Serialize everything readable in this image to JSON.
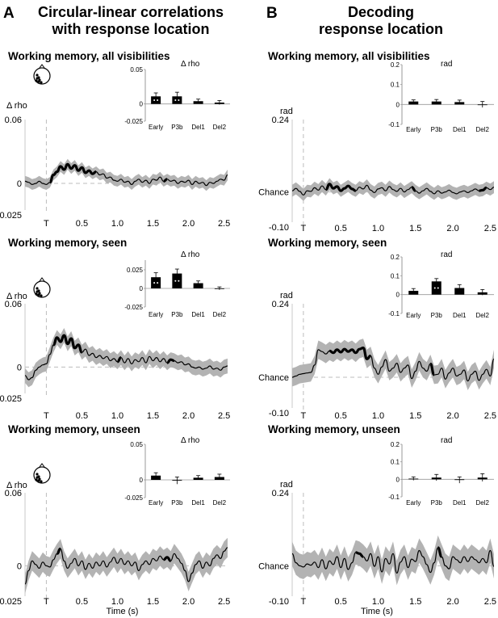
{
  "figure": {
    "colors": {
      "line": "#000000",
      "band": "#b3b3b3",
      "dashed": "#bdbdbd",
      "axis": "#c8c8c8",
      "bar": "#000000"
    }
  },
  "columns": [
    {
      "letter": "A",
      "title_lines": [
        "Circular-linear correlations",
        "with response location"
      ]
    },
    {
      "letter": "B",
      "title_lines": [
        "Decoding",
        "response location"
      ]
    }
  ],
  "chart_data": [
    {
      "panel": "A1",
      "type": "line",
      "title": "Working memory, all visibilities",
      "ylabel": "Δ rho",
      "ytick_labels": [
        "0.06",
        "0",
        "-0.025"
      ],
      "ylim": [
        -0.025,
        0.06
      ],
      "xlabel": "",
      "xtick_labels": [
        "T",
        "0.5",
        "1.0",
        "1.5",
        "2.0",
        "2.5"
      ],
      "xticks": [
        0,
        0.5,
        1.0,
        1.5,
        2.0,
        2.5
      ],
      "xlim": [
        -0.3,
        2.55
      ],
      "band_width": 0.005,
      "has_head": true,
      "x": [
        -0.3,
        -0.25,
        -0.2,
        -0.15,
        -0.1,
        -0.05,
        0,
        0.05,
        0.1,
        0.15,
        0.2,
        0.25,
        0.3,
        0.35,
        0.4,
        0.45,
        0.5,
        0.55,
        0.6,
        0.65,
        0.7,
        0.75,
        0.8,
        0.85,
        0.9,
        0.95,
        1.0,
        1.05,
        1.1,
        1.15,
        1.2,
        1.25,
        1.3,
        1.35,
        1.4,
        1.45,
        1.5,
        1.55,
        1.6,
        1.65,
        1.7,
        1.75,
        1.8,
        1.85,
        1.9,
        1.95,
        2.0,
        2.05,
        2.1,
        2.15,
        2.2,
        2.25,
        2.3,
        2.35,
        2.4,
        2.45,
        2.5,
        2.55
      ],
      "y": [
        0.002,
        0.001,
        -0.001,
        0.0,
        0.002,
        0.0,
        -0.001,
        0.001,
        0.008,
        0.011,
        0.016,
        0.013,
        0.018,
        0.014,
        0.017,
        0.012,
        0.015,
        0.01,
        0.012,
        0.009,
        0.011,
        0.008,
        0.009,
        0.005,
        0.006,
        0.003,
        0.002,
        0.004,
        0.001,
        0.002,
        -0.001,
        0.002,
        0.004,
        0.001,
        0.003,
        0.0,
        0.004,
        0.003,
        0.006,
        0.002,
        0.004,
        0.002,
        0.003,
        0.0,
        0.002,
        0.001,
        0.003,
        -0.001,
        0.002,
        0.0,
        0.001,
        -0.002,
        0.001,
        0.0,
        0.002,
        0.004,
        0.003,
        0.008
      ],
      "significant": [
        [
          0.05,
          0.7
        ],
        [
          1.65,
          1.7
        ]
      ],
      "inset": {
        "title": "Δ rho",
        "ytick_labels": [
          "0.05",
          "0",
          "-0.025"
        ],
        "ylim": [
          -0.025,
          0.05
        ],
        "categories": [
          "Early",
          "P3b",
          "Del1",
          "Del2"
        ],
        "values": [
          0.011,
          0.011,
          0.004,
          0.002
        ],
        "errors": [
          0.005,
          0.006,
          0.003,
          0.003
        ],
        "markers": [
          true,
          true,
          false,
          false
        ]
      }
    },
    {
      "panel": "A2",
      "type": "line",
      "title": "Working memory, seen",
      "ylabel": "Δ rho",
      "ytick_labels": [
        "0.06",
        "0",
        "-0.025"
      ],
      "ylim": [
        -0.025,
        0.06
      ],
      "xlabel": "",
      "xtick_labels": [
        "T",
        "0.5",
        "1.0",
        "1.5",
        "2.0",
        "2.5"
      ],
      "xticks": [
        0,
        0.5,
        1.0,
        1.5,
        2.0,
        2.5
      ],
      "xlim": [
        -0.3,
        2.55
      ],
      "band_width": 0.007,
      "has_head": true,
      "x": [
        -0.3,
        -0.25,
        -0.2,
        -0.15,
        -0.1,
        -0.05,
        0,
        0.05,
        0.1,
        0.15,
        0.2,
        0.25,
        0.3,
        0.35,
        0.4,
        0.45,
        0.5,
        0.55,
        0.6,
        0.65,
        0.7,
        0.75,
        0.8,
        0.85,
        0.9,
        0.95,
        1.0,
        1.05,
        1.1,
        1.15,
        1.2,
        1.25,
        1.3,
        1.35,
        1.4,
        1.45,
        1.5,
        1.55,
        1.6,
        1.65,
        1.7,
        1.75,
        1.8,
        1.85,
        1.9,
        1.95,
        2.0,
        2.05,
        2.1,
        2.15,
        2.2,
        2.25,
        2.3,
        2.35,
        2.4,
        2.45,
        2.5,
        2.55
      ],
      "y": [
        -0.008,
        -0.012,
        -0.01,
        -0.003,
        0.0,
        0.002,
        0.003,
        0.012,
        0.021,
        0.028,
        0.024,
        0.03,
        0.022,
        0.027,
        0.018,
        0.021,
        0.014,
        0.017,
        0.011,
        0.013,
        0.009,
        0.011,
        0.008,
        0.01,
        0.006,
        0.008,
        0.005,
        0.009,
        0.004,
        0.008,
        0.003,
        0.007,
        0.005,
        0.009,
        0.004,
        0.01,
        0.006,
        0.009,
        0.005,
        0.008,
        0.004,
        0.007,
        0.006,
        0.004,
        0.005,
        0.002,
        0.003,
        0.0,
        -0.001,
        0.0,
        -0.002,
        -0.001,
        0.001,
        -0.002,
        -0.001,
        -0.003,
        0.0,
        0.001
      ],
      "significant": [
        [
          0.1,
          0.5
        ],
        [
          1.0,
          1.05
        ],
        [
          1.7,
          1.8
        ]
      ],
      "inset": {
        "title": "Δ rho",
        "ytick_labels": [
          "0.025",
          "0",
          "-0.025"
        ],
        "ylim": [
          -0.025,
          0.038
        ],
        "categories": [
          "Early",
          "P3b",
          "Del1",
          "Del2"
        ],
        "values": [
          0.015,
          0.02,
          0.007,
          0.0
        ],
        "errors": [
          0.006,
          0.006,
          0.003,
          0.002
        ],
        "markers": [
          true,
          true,
          false,
          false
        ]
      }
    },
    {
      "panel": "A3",
      "type": "line",
      "title": "Working memory, unseen",
      "ylabel": "Δ rho",
      "ytick_labels": [
        "0.06",
        "0",
        "-0.025"
      ],
      "ylim": [
        -0.025,
        0.06
      ],
      "xlabel": "Time (s)",
      "xtick_labels": [
        "T",
        "0.5",
        "1.0",
        "1.5",
        "2.0",
        "2.5"
      ],
      "xticks": [
        0,
        0.5,
        1.0,
        1.5,
        2.0,
        2.5
      ],
      "xlim": [
        -0.3,
        2.55
      ],
      "band_width": 0.008,
      "has_head": true,
      "x": [
        -0.3,
        -0.25,
        -0.2,
        -0.15,
        -0.1,
        -0.05,
        0,
        0.05,
        0.1,
        0.15,
        0.2,
        0.25,
        0.3,
        0.35,
        0.4,
        0.45,
        0.5,
        0.55,
        0.6,
        0.65,
        0.7,
        0.75,
        0.8,
        0.85,
        0.9,
        0.95,
        1.0,
        1.05,
        1.1,
        1.15,
        1.2,
        1.25,
        1.3,
        1.35,
        1.4,
        1.45,
        1.5,
        1.55,
        1.6,
        1.65,
        1.7,
        1.75,
        1.8,
        1.85,
        1.9,
        1.95,
        2.0,
        2.05,
        2.1,
        2.15,
        2.2,
        2.25,
        2.3,
        2.35,
        2.4,
        2.45,
        2.5,
        2.55
      ],
      "y": [
        -0.015,
        -0.004,
        0.004,
        0.001,
        -0.002,
        0.003,
        0.0,
        -0.001,
        0.005,
        0.01,
        0.014,
        0.004,
        -0.002,
        0.002,
        0.006,
        0.0,
        0.004,
        -0.003,
        0.002,
        -0.002,
        0.003,
        0.0,
        0.004,
        -0.001,
        0.003,
        0.007,
        0.002,
        0.006,
        0.001,
        0.004,
        0.0,
        0.003,
        -0.004,
        0.001,
        0.004,
        0.001,
        0.006,
        0.004,
        0.008,
        0.005,
        0.007,
        0.004,
        0.01,
        0.006,
        0.002,
        -0.004,
        -0.013,
        -0.006,
        0.001,
        0.004,
        -0.002,
        0.003,
        0.0,
        0.006,
        0.009,
        0.006,
        0.012,
        0.015
      ],
      "significant": [
        [
          0.15,
          0.2
        ],
        [
          1.65,
          1.75
        ]
      ],
      "inset": {
        "title": "Δ rho",
        "ytick_labels": [
          "0.05",
          "0",
          "-0.025"
        ],
        "ylim": [
          -0.025,
          0.05
        ],
        "categories": [
          "Early",
          "P3b",
          "Del1",
          "Del2"
        ],
        "values": [
          0.006,
          -0.001,
          0.003,
          0.004
        ],
        "errors": [
          0.004,
          0.005,
          0.003,
          0.004
        ],
        "markers": [
          false,
          false,
          false,
          false
        ]
      }
    },
    {
      "panel": "B1",
      "type": "line",
      "title": "Working memory, all visibilities",
      "ylabel": "rad",
      "ytick_labels": [
        "0.24",
        "Chance",
        "-0.10"
      ],
      "ylim": [
        -0.1,
        0.24
      ],
      "xlabel": "",
      "xtick_labels": [
        "T",
        "0.5",
        "1.0",
        "1.5",
        "2.0",
        "2.5"
      ],
      "xticks": [
        0,
        0.5,
        1.0,
        1.5,
        2.0,
        2.5
      ],
      "xlim": [
        -0.15,
        2.55
      ],
      "band_width": 0.02,
      "has_head": false,
      "x": [
        -0.15,
        -0.1,
        -0.05,
        0,
        0.05,
        0.1,
        0.15,
        0.2,
        0.25,
        0.3,
        0.35,
        0.4,
        0.45,
        0.5,
        0.55,
        0.6,
        0.65,
        0.7,
        0.75,
        0.8,
        0.85,
        0.9,
        0.95,
        1.0,
        1.05,
        1.1,
        1.15,
        1.2,
        1.25,
        1.3,
        1.35,
        1.4,
        1.45,
        1.5,
        1.55,
        1.6,
        1.65,
        1.7,
        1.75,
        1.8,
        1.85,
        1.9,
        1.95,
        2.0,
        2.05,
        2.1,
        2.15,
        2.2,
        2.25,
        2.3,
        2.35,
        2.4,
        2.45,
        2.5,
        2.55
      ],
      "y": [
        0.004,
        0.012,
        0.002,
        -0.01,
        0.004,
        0.002,
        0.014,
        0.006,
        0.02,
        0.008,
        0.026,
        0.012,
        0.018,
        0.004,
        0.012,
        0.02,
        0.01,
        0.004,
        0.016,
        0.01,
        0.022,
        0.006,
        -0.002,
        0.01,
        0.014,
        0.004,
        0.018,
        0.008,
        0.002,
        0.012,
        0.0,
        0.008,
        0.016,
        0.004,
        -0.004,
        0.004,
        0.012,
        0.002,
        -0.006,
        0.004,
        -0.004,
        0.0,
        0.006,
        -0.002,
        -0.006,
        0.0,
        0.004,
        -0.002,
        0.004,
        0.01,
        0.004,
        0.006,
        0.014,
        0.008,
        0.016
      ],
      "significant": [
        [
          0.3,
          0.7
        ],
        [
          1.45,
          1.5
        ],
        [
          2.35,
          2.45
        ]
      ],
      "inset": {
        "title": "rad",
        "ytick_labels": [
          "0.2",
          "0.1",
          "0",
          "-0.1"
        ],
        "ylim": [
          -0.1,
          0.2
        ],
        "categories": [
          "Early",
          "P3b",
          "Del1",
          "Del2"
        ],
        "values": [
          0.015,
          0.015,
          0.012,
          0.0
        ],
        "errors": [
          0.008,
          0.01,
          0.01,
          0.015
        ],
        "markers": [
          false,
          false,
          false,
          false
        ]
      }
    },
    {
      "panel": "B2",
      "type": "line",
      "title": "Working memory, seen",
      "ylabel": "rad",
      "ytick_labels": [
        "0.24",
        "Chance",
        "-0.10"
      ],
      "ylim": [
        -0.1,
        0.24
      ],
      "xlabel": "",
      "xtick_labels": [
        "T",
        "0.5",
        "1.0",
        "1.5",
        "2.0",
        "2.5"
      ],
      "xticks": [
        0,
        0.5,
        1.0,
        1.5,
        2.0,
        2.5
      ],
      "xlim": [
        -0.15,
        2.55
      ],
      "band_width": 0.03,
      "has_head": false,
      "x": [
        -0.15,
        -0.1,
        -0.05,
        0,
        0.05,
        0.1,
        0.15,
        0.2,
        0.25,
        0.3,
        0.35,
        0.4,
        0.45,
        0.5,
        0.55,
        0.6,
        0.65,
        0.7,
        0.75,
        0.8,
        0.85,
        0.9,
        0.95,
        1.0,
        1.05,
        1.1,
        1.15,
        1.2,
        1.25,
        1.3,
        1.35,
        1.4,
        1.45,
        1.5,
        1.55,
        1.6,
        1.65,
        1.7,
        1.75,
        1.8,
        1.85,
        1.9,
        1.95,
        2.0,
        2.05,
        2.1,
        2.15,
        2.2,
        2.25,
        2.3,
        2.35,
        2.4,
        2.45,
        2.5,
        2.55
      ],
      "y": [
        0.0,
        0.004,
        0.01,
        0.012,
        0.014,
        0.016,
        0.04,
        0.09,
        0.084,
        0.076,
        0.086,
        0.08,
        0.09,
        0.082,
        0.092,
        0.084,
        0.09,
        0.08,
        0.092,
        0.096,
        0.06,
        0.07,
        0.03,
        0.01,
        0.034,
        0.058,
        0.02,
        0.03,
        0.046,
        0.016,
        0.03,
        0.04,
        -0.004,
        0.02,
        0.052,
        0.03,
        0.02,
        0.044,
        0.008,
        0.01,
        0.03,
        -0.006,
        0.014,
        0.03,
        0.004,
        0.01,
        0.024,
        -0.012,
        0.01,
        0.02,
        -0.01,
        0.01,
        0.026,
        0.004,
        0.06
      ],
      "significant": [
        [
          0.35,
          0.9
        ],
        [
          1.7,
          1.75
        ]
      ],
      "inset": {
        "title": "rad",
        "ytick_labels": [
          "0.2",
          "0.1",
          "0",
          "-0.1"
        ],
        "ylim": [
          -0.1,
          0.2
        ],
        "categories": [
          "Early",
          "P3b",
          "Del1",
          "Del2"
        ],
        "values": [
          0.02,
          0.07,
          0.035,
          0.012
        ],
        "errors": [
          0.012,
          0.015,
          0.018,
          0.015
        ],
        "markers": [
          false,
          true,
          false,
          false
        ]
      }
    },
    {
      "panel": "B3",
      "type": "line",
      "title": "Working memory, unseen",
      "ylabel": "rad",
      "ytick_labels": [
        "0.24",
        "Chance",
        "-0.10"
      ],
      "ylim": [
        -0.1,
        0.24
      ],
      "xlabel": "Time (s)",
      "xtick_labels": [
        "T",
        "0.5",
        "1.0",
        "1.5",
        "2.0",
        "2.5"
      ],
      "xticks": [
        0,
        0.5,
        1.0,
        1.5,
        2.0,
        2.5
      ],
      "xlim": [
        -0.15,
        2.55
      ],
      "band_width": 0.04,
      "has_head": false,
      "x": [
        -0.15,
        -0.1,
        -0.05,
        0,
        0.05,
        0.1,
        0.15,
        0.2,
        0.25,
        0.3,
        0.35,
        0.4,
        0.45,
        0.5,
        0.55,
        0.6,
        0.65,
        0.7,
        0.75,
        0.8,
        0.85,
        0.9,
        0.95,
        1.0,
        1.05,
        1.1,
        1.15,
        1.2,
        1.25,
        1.3,
        1.35,
        1.4,
        1.45,
        1.5,
        1.55,
        1.6,
        1.65,
        1.7,
        1.75,
        1.8,
        1.85,
        1.9,
        1.95,
        2.0,
        2.05,
        2.1,
        2.15,
        2.2,
        2.25,
        2.3,
        2.35,
        2.4,
        2.45,
        2.5,
        2.55
      ],
      "y": [
        0.04,
        0.01,
        0.0,
        -0.004,
        0.006,
        0.002,
        0.012,
        -0.006,
        0.02,
        -0.01,
        0.016,
        0.004,
        0.03,
        -0.006,
        0.024,
        -0.012,
        0.01,
        0.044,
        0.04,
        0.03,
        0.016,
        0.04,
        -0.002,
        0.03,
        -0.02,
        0.024,
        0.006,
        0.04,
        -0.024,
        0.012,
        0.03,
        -0.006,
        0.022,
        0.014,
        0.05,
        0.03,
        0.004,
        -0.022,
        0.01,
        0.06,
        0.03,
        0.0,
        -0.01,
        0.03,
        0.02,
        0.01,
        0.03,
        0.014,
        0.03,
        0.02,
        0.01,
        0.024,
        0.01,
        0.05,
        -0.002
      ],
      "significant": [
        [
          0.7,
          0.8
        ],
        [
          1.8,
          1.85
        ]
      ],
      "inset": {
        "title": "rad",
        "ytick_labels": [
          "0.2",
          "0.1",
          "0",
          "-0.1"
        ],
        "ylim": [
          -0.1,
          0.2
        ],
        "categories": [
          "Early",
          "P3b",
          "Del1",
          "Del2"
        ],
        "values": [
          0.004,
          0.01,
          -0.004,
          0.01
        ],
        "errors": [
          0.01,
          0.018,
          0.018,
          0.022
        ],
        "markers": [
          false,
          false,
          false,
          false
        ]
      }
    }
  ]
}
